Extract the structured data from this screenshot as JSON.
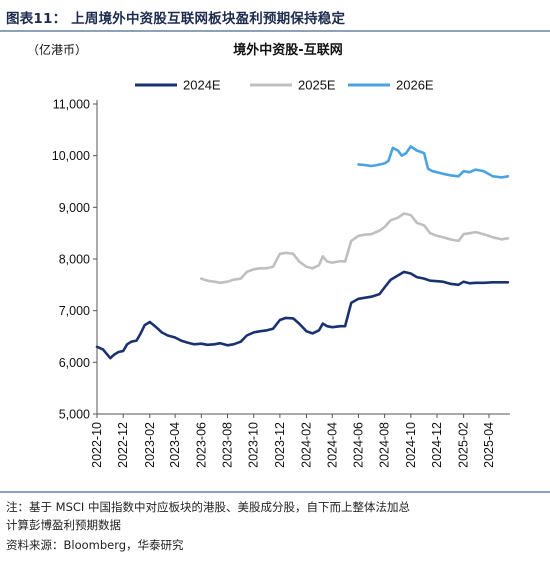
{
  "figure": {
    "title": "图表11：  上周境外中资股互联网板块盈利预期保持稳定",
    "note_line1": "注：基于 MSCI 中国指数中对应板块的港股、美股成分股，自下而上整体法加总",
    "note_line2": "计算彭博盈利预期数据",
    "source": "资料来源：Bloomberg，华泰研究"
  },
  "colors": {
    "2024E": "#1a3270",
    "2025E": "#bfbfbf",
    "2026E": "#4aa3e0",
    "rule": "#8fa0b8"
  },
  "chart_data": {
    "type": "line",
    "title": "境外中资股-互联网",
    "unit_label": "（亿港币）",
    "ylim": [
      5000,
      11000
    ],
    "y_ticks": [
      5000,
      6000,
      7000,
      8000,
      9000,
      10000,
      11000
    ],
    "y_tick_labels": [
      "5,000",
      "6,000",
      "7,000",
      "8,000",
      "9,000",
      "10,000",
      "11,000"
    ],
    "x_ticks": [
      "2022-10",
      "2022-12",
      "2023-02",
      "2023-04",
      "2023-06",
      "2023-08",
      "2023-10",
      "2023-12",
      "2024-02",
      "2024-04",
      "2024-06",
      "2024-08",
      "2024-10",
      "2024-12",
      "2025-02",
      "2025-04"
    ],
    "x_start": "2022-10-01",
    "x_end": "2025-05-20",
    "legend": {
      "position": "top"
    },
    "grid": false,
    "series": [
      {
        "name": "2024E",
        "points": [
          [
            "2022-10-01",
            6300
          ],
          [
            "2022-10-15",
            6250
          ],
          [
            "2022-11-01",
            6080
          ],
          [
            "2022-11-10",
            6150
          ],
          [
            "2022-11-20",
            6200
          ],
          [
            "2022-12-01",
            6220
          ],
          [
            "2022-12-10",
            6350
          ],
          [
            "2022-12-20",
            6400
          ],
          [
            "2023-01-01",
            6420
          ],
          [
            "2023-01-10",
            6550
          ],
          [
            "2023-01-20",
            6720
          ],
          [
            "2023-02-01",
            6780
          ],
          [
            "2023-02-10",
            6720
          ],
          [
            "2023-02-20",
            6650
          ],
          [
            "2023-03-01",
            6580
          ],
          [
            "2023-03-15",
            6520
          ],
          [
            "2023-04-01",
            6480
          ],
          [
            "2023-04-15",
            6420
          ],
          [
            "2023-05-01",
            6380
          ],
          [
            "2023-05-15",
            6350
          ],
          [
            "2023-06-01",
            6360
          ],
          [
            "2023-06-15",
            6340
          ],
          [
            "2023-07-01",
            6350
          ],
          [
            "2023-07-15",
            6370
          ],
          [
            "2023-08-01",
            6330
          ],
          [
            "2023-08-15",
            6350
          ],
          [
            "2023-09-01",
            6400
          ],
          [
            "2023-09-15",
            6520
          ],
          [
            "2023-10-01",
            6580
          ],
          [
            "2023-10-15",
            6600
          ],
          [
            "2023-11-01",
            6620
          ],
          [
            "2023-11-15",
            6650
          ],
          [
            "2023-12-01",
            6820
          ],
          [
            "2023-12-15",
            6860
          ],
          [
            "2024-01-01",
            6850
          ],
          [
            "2024-01-15",
            6750
          ],
          [
            "2024-02-01",
            6600
          ],
          [
            "2024-02-15",
            6560
          ],
          [
            "2024-03-01",
            6620
          ],
          [
            "2024-03-10",
            6750
          ],
          [
            "2024-03-20",
            6700
          ],
          [
            "2024-04-01",
            6680
          ],
          [
            "2024-04-20",
            6700
          ],
          [
            "2024-05-01",
            6700
          ],
          [
            "2024-05-15",
            7150
          ],
          [
            "2024-06-01",
            7230
          ],
          [
            "2024-06-15",
            7250
          ],
          [
            "2024-07-01",
            7270
          ],
          [
            "2024-07-20",
            7320
          ],
          [
            "2024-08-01",
            7450
          ],
          [
            "2024-08-15",
            7600
          ],
          [
            "2024-09-01",
            7680
          ],
          [
            "2024-09-15",
            7750
          ],
          [
            "2024-10-01",
            7720
          ],
          [
            "2024-10-15",
            7650
          ],
          [
            "2024-11-01",
            7620
          ],
          [
            "2024-11-15",
            7580
          ],
          [
            "2024-12-01",
            7570
          ],
          [
            "2024-12-15",
            7560
          ],
          [
            "2025-01-01",
            7520
          ],
          [
            "2025-01-20",
            7500
          ],
          [
            "2025-02-01",
            7560
          ],
          [
            "2025-02-15",
            7530
          ],
          [
            "2025-03-01",
            7540
          ],
          [
            "2025-03-20",
            7540
          ],
          [
            "2025-04-10",
            7550
          ],
          [
            "2025-05-01",
            7550
          ],
          [
            "2025-05-15",
            7550
          ]
        ]
      },
      {
        "name": "2025E",
        "points": [
          [
            "2023-06-01",
            7620
          ],
          [
            "2023-06-15",
            7580
          ],
          [
            "2023-07-01",
            7560
          ],
          [
            "2023-07-15",
            7540
          ],
          [
            "2023-08-01",
            7560
          ],
          [
            "2023-08-15",
            7600
          ],
          [
            "2023-09-01",
            7620
          ],
          [
            "2023-09-15",
            7750
          ],
          [
            "2023-10-01",
            7800
          ],
          [
            "2023-10-15",
            7820
          ],
          [
            "2023-11-01",
            7820
          ],
          [
            "2023-11-15",
            7850
          ],
          [
            "2023-12-01",
            8100
          ],
          [
            "2023-12-15",
            8120
          ],
          [
            "2024-01-01",
            8100
          ],
          [
            "2024-01-15",
            7950
          ],
          [
            "2024-02-01",
            7850
          ],
          [
            "2024-02-15",
            7820
          ],
          [
            "2024-03-01",
            7880
          ],
          [
            "2024-03-10",
            8050
          ],
          [
            "2024-03-20",
            7950
          ],
          [
            "2024-04-01",
            7930
          ],
          [
            "2024-04-20",
            7960
          ],
          [
            "2024-05-01",
            7950
          ],
          [
            "2024-05-15",
            8350
          ],
          [
            "2024-06-01",
            8450
          ],
          [
            "2024-06-15",
            8470
          ],
          [
            "2024-07-01",
            8480
          ],
          [
            "2024-07-20",
            8550
          ],
          [
            "2024-08-01",
            8620
          ],
          [
            "2024-08-15",
            8750
          ],
          [
            "2024-09-01",
            8800
          ],
          [
            "2024-09-15",
            8880
          ],
          [
            "2024-10-01",
            8850
          ],
          [
            "2024-10-15",
            8700
          ],
          [
            "2024-11-01",
            8650
          ],
          [
            "2024-11-15",
            8500
          ],
          [
            "2024-12-01",
            8450
          ],
          [
            "2024-12-15",
            8420
          ],
          [
            "2025-01-01",
            8380
          ],
          [
            "2025-01-20",
            8350
          ],
          [
            "2025-02-01",
            8480
          ],
          [
            "2025-02-15",
            8500
          ],
          [
            "2025-03-01",
            8520
          ],
          [
            "2025-03-20",
            8480
          ],
          [
            "2025-04-10",
            8420
          ],
          [
            "2025-05-01",
            8380
          ],
          [
            "2025-05-15",
            8400
          ]
        ]
      },
      {
        "name": "2026E",
        "points": [
          [
            "2024-06-01",
            9830
          ],
          [
            "2024-06-15",
            9820
          ],
          [
            "2024-07-01",
            9800
          ],
          [
            "2024-07-15",
            9820
          ],
          [
            "2024-08-01",
            9850
          ],
          [
            "2024-08-10",
            9900
          ],
          [
            "2024-08-20",
            10150
          ],
          [
            "2024-09-01",
            10100
          ],
          [
            "2024-09-10",
            10000
          ],
          [
            "2024-09-20",
            10050
          ],
          [
            "2024-10-01",
            10180
          ],
          [
            "2024-10-15",
            10100
          ],
          [
            "2024-11-01",
            10050
          ],
          [
            "2024-11-10",
            9750
          ],
          [
            "2024-11-20",
            9700
          ],
          [
            "2024-12-01",
            9680
          ],
          [
            "2024-12-15",
            9650
          ],
          [
            "2025-01-01",
            9620
          ],
          [
            "2025-01-20",
            9600
          ],
          [
            "2025-02-01",
            9700
          ],
          [
            "2025-02-15",
            9680
          ],
          [
            "2025-03-01",
            9730
          ],
          [
            "2025-03-20",
            9700
          ],
          [
            "2025-04-10",
            9600
          ],
          [
            "2025-05-01",
            9580
          ],
          [
            "2025-05-15",
            9600
          ]
        ]
      }
    ]
  }
}
